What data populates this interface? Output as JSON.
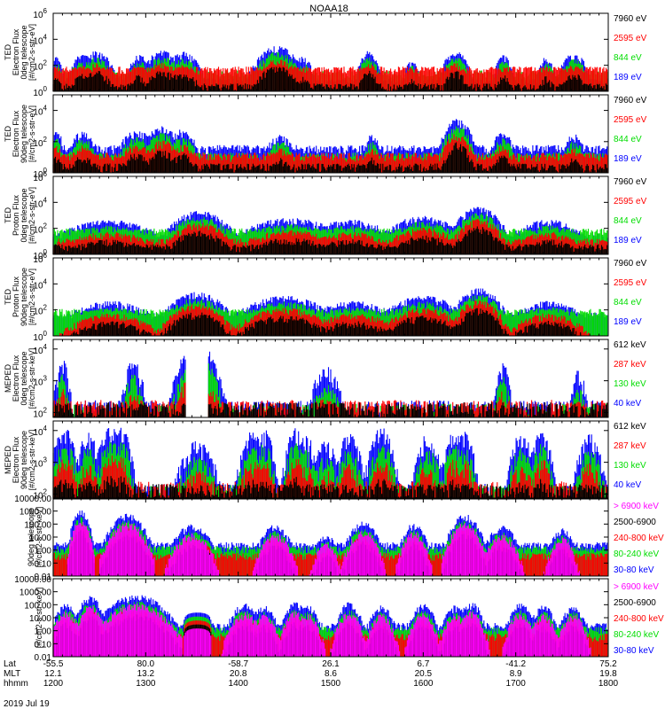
{
  "title": "NOAA18",
  "date_label": "2019 Jul 19",
  "colors": {
    "black": "#000000",
    "red": "#ff0000",
    "green": "#00dd00",
    "blue": "#0000ff",
    "magenta": "#ff00ff"
  },
  "time_axis": {
    "range": [
      1200,
      1800
    ],
    "row_labels": [
      "Lat",
      "MLT",
      "hhmm"
    ],
    "ticks": [
      {
        "time": 1200,
        "lat": "-55.5",
        "mlt": "12.1",
        "hhmm": "1200"
      },
      {
        "time": 1300,
        "lat": "80.0",
        "mlt": "13.2",
        "hhmm": "1300"
      },
      {
        "time": 1400,
        "lat": "-58.7",
        "mlt": "20.8",
        "hhmm": "1400"
      },
      {
        "time": 1500,
        "lat": "26.1",
        "mlt": "8.6",
        "hhmm": "1500"
      },
      {
        "time": 1600,
        "lat": "6.7",
        "mlt": "20.5",
        "hhmm": "1600"
      },
      {
        "time": 1700,
        "lat": "-41.2",
        "mlt": "8.9",
        "hhmm": "1700"
      },
      {
        "time": 1800,
        "lat": "75.2",
        "mlt": "19.8",
        "hhmm": "1800"
      }
    ]
  },
  "chart_data": [
    {
      "type": "scatter",
      "yscale": "log",
      "ylim": [
        1,
        1000000
      ],
      "ylabel": [
        "TED",
        "Electron Flux",
        "0deg telescope",
        "[#/cm2-s-str-eV]"
      ],
      "yticks": [
        {
          "base": "10",
          "exp": "0",
          "value": 1
        },
        {
          "base": "10",
          "exp": "2",
          "value": 100
        },
        {
          "base": "10",
          "exp": "4",
          "value": 10000
        },
        {
          "base": "10",
          "exp": "6",
          "value": 1000000
        }
      ],
      "legend": [
        "7960 eV",
        "2595 eV",
        "844 eV",
        "189 eV"
      ],
      "legend_colors": [
        "#000000",
        "#ff0000",
        "#00dd00",
        "#0000ff"
      ],
      "bursts": [
        [
          1204,
          4,
          300
        ],
        [
          1231,
          8,
          500
        ],
        [
          1247,
          11,
          800
        ],
        [
          1293,
          8,
          400
        ],
        [
          1318,
          12,
          900
        ],
        [
          1340,
          12,
          700
        ],
        [
          1442,
          14,
          2000
        ],
        [
          1470,
          7,
          300
        ],
        [
          1541,
          7,
          800
        ],
        [
          1588,
          5,
          200
        ],
        [
          1635,
          9,
          800
        ],
        [
          1687,
          6,
          400
        ],
        [
          1733,
          6,
          300
        ],
        [
          1763,
          9,
          600
        ]
      ],
      "baseline": [
        2,
        40,
        20,
        5
      ],
      "mask": []
    },
    {
      "type": "scatter",
      "yscale": "log",
      "ylim": [
        1,
        100000
      ],
      "ylabel": [
        "TED",
        "Electron Flux",
        "90deg telescope",
        "[#/cm2-s-str-eV]"
      ],
      "yticks": [
        {
          "base": "10",
          "exp": "0",
          "value": 1
        },
        {
          "base": "10",
          "exp": "2",
          "value": 100
        },
        {
          "base": "10",
          "exp": "4",
          "value": 10000
        }
      ],
      "legend": [
        "7960 eV",
        "2595 eV",
        "844 eV",
        "189 eV"
      ],
      "legend_colors": [
        "#000000",
        "#ff0000",
        "#00dd00",
        "#0000ff"
      ],
      "bursts": [
        [
          1204,
          5,
          300
        ],
        [
          1232,
          10,
          300
        ],
        [
          1290,
          12,
          400
        ],
        [
          1318,
          12,
          700
        ],
        [
          1340,
          10,
          400
        ],
        [
          1445,
          10,
          200
        ],
        [
          1545,
          6,
          200
        ],
        [
          1637,
          10,
          2000
        ],
        [
          1686,
          8,
          300
        ],
        [
          1763,
          8,
          200
        ]
      ],
      "baseline": [
        2,
        10,
        10,
        30
      ],
      "mask": []
    },
    {
      "type": "scatter",
      "yscale": "log",
      "ylim": [
        1,
        1000000
      ],
      "ylabel": [
        "TED",
        "Proton Flux",
        "0deg telescope",
        "[#/cm2-s-str-eV]"
      ],
      "yticks": [
        {
          "base": "10",
          "exp": "0",
          "value": 1
        },
        {
          "base": "10",
          "exp": "2",
          "value": 100
        },
        {
          "base": "10",
          "exp": "4",
          "value": 10000
        },
        {
          "base": "10",
          "exp": "6",
          "value": 1000000
        }
      ],
      "legend": [
        "7960 eV",
        "2595 eV",
        "844 eV",
        "189 eV"
      ],
      "legend_colors": [
        "#000000",
        "#ff0000",
        "#00dd00",
        "#0000ff"
      ],
      "bursts": [
        [
          1260,
          35,
          300
        ],
        [
          1358,
          20,
          1500
        ],
        [
          1456,
          35,
          400
        ],
        [
          1520,
          30,
          300
        ],
        [
          1600,
          25,
          600
        ],
        [
          1660,
          15,
          3000
        ],
        [
          1735,
          25,
          300
        ]
      ],
      "baseline": [
        3,
        8,
        50,
        20
      ],
      "mask": []
    },
    {
      "type": "scatter",
      "yscale": "log",
      "ylim": [
        1,
        1000000
      ],
      "ylabel": [
        "TED",
        "Proton Flux",
        "90deg telescope",
        "[#/cm2-s-str-eV]"
      ],
      "yticks": [
        {
          "base": "10",
          "exp": "0",
          "value": 1
        },
        {
          "base": "10",
          "exp": "2",
          "value": 100
        },
        {
          "base": "10",
          "exp": "4",
          "value": 10000
        },
        {
          "base": "10",
          "exp": "6",
          "value": 1000000
        }
      ],
      "legend": [
        "7960 eV",
        "2595 eV",
        "844 eV",
        "189 eV"
      ],
      "legend_colors": [
        "#000000",
        "#ff0000",
        "#00dd00",
        "#0000ff"
      ],
      "bursts": [
        [
          1262,
          30,
          300
        ],
        [
          1355,
          20,
          1500
        ],
        [
          1450,
          30,
          800
        ],
        [
          1525,
          30,
          300
        ],
        [
          1600,
          25,
          800
        ],
        [
          1660,
          15,
          3000
        ],
        [
          1735,
          25,
          300
        ]
      ],
      "baseline": [
        0,
        0,
        60,
        30
      ],
      "mask": []
    },
    {
      "type": "scatter",
      "yscale": "log",
      "ylim": [
        70,
        20000
      ],
      "ylabel": [
        "MEPED",
        "Electron Flux",
        "0deg telescope",
        "[#/cm2-s-str-keV]"
      ],
      "yticks": [
        {
          "base": "10",
          "exp": "2",
          "value": 100
        },
        {
          "base": "10",
          "exp": "3",
          "value": 1000
        },
        {
          "base": "10",
          "exp": "4",
          "value": 10000
        }
      ],
      "legend": [
        "612 keV",
        "287 keV",
        "130 keV",
        "40 keV"
      ],
      "legend_colors": [
        "#000000",
        "#ff0000",
        "#00dd00",
        "#0000ff"
      ],
      "bursts": [
        [
          1210,
          6,
          3000
        ],
        [
          1287,
          8,
          3000
        ],
        [
          1356,
          15,
          13000
        ],
        [
          1495,
          12,
          1800
        ],
        [
          1686,
          6,
          2500
        ],
        [
          1768,
          6,
          1500
        ]
      ],
      "baseline": [
        105,
        125,
        95,
        120
      ],
      "mask": [
        [
          1344,
          1368
        ]
      ]
    },
    {
      "type": "scatter",
      "yscale": "log",
      "ylim": [
        70,
        20000
      ],
      "ylabel": [
        "MEPED",
        "Electron Flux",
        "90deg telescope",
        "[#/cm2-s-str-keV]"
      ],
      "yticks": [
        {
          "base": "10",
          "exp": "2",
          "value": 100
        },
        {
          "base": "10",
          "exp": "3",
          "value": 1000
        },
        {
          "base": "10",
          "exp": "4",
          "value": 10000
        }
      ],
      "legend": [
        "612 keV",
        "287 keV",
        "130 keV",
        "40 keV"
      ],
      "legend_colors": [
        "#000000",
        "#ff0000",
        "#00dd00",
        "#0000ff"
      ],
      "bursts": [
        [
          1213,
          10,
          8000
        ],
        [
          1238,
          8,
          6000
        ],
        [
          1262,
          10,
          9000
        ],
        [
          1274,
          8,
          8000
        ],
        [
          1356,
          15,
          3000
        ],
        [
          1415,
          10,
          6000
        ],
        [
          1428,
          8,
          7000
        ],
        [
          1462,
          8,
          8000
        ],
        [
          1473,
          8,
          5000
        ],
        [
          1495,
          10,
          3000
        ],
        [
          1520,
          10,
          5000
        ],
        [
          1555,
          10,
          8000
        ],
        [
          1605,
          10,
          5000
        ],
        [
          1633,
          8,
          7000
        ],
        [
          1645,
          8,
          6000
        ],
        [
          1706,
          10,
          5000
        ],
        [
          1728,
          8,
          7000
        ],
        [
          1780,
          10,
          5000
        ]
      ],
      "baseline": [
        105,
        125,
        95,
        105
      ],
      "mask": []
    },
    {
      "type": "scatter",
      "yscale": "log",
      "ylim": [
        0.01,
        10000
      ],
      "ylabel": [
        "90deg telescope",
        "[#/cm2-s-str-keV]"
      ],
      "yticks": [
        {
          "label": "0.01",
          "value": 0.01
        },
        {
          "label": "0.10",
          "value": 0.1
        },
        {
          "label": "1.00",
          "value": 1
        },
        {
          "label": "10.00",
          "value": 10
        },
        {
          "label": "100.00",
          "value": 100
        },
        {
          "label": "1000.00",
          "value": 1000
        },
        {
          "label": "10000.00",
          "value": 10000
        }
      ],
      "legend": [
        "> 6900 keV",
        "2500-6900",
        "240-800 keV",
        "80-240 keV",
        "30-80 keV"
      ],
      "legend_colors": [
        "#ff00ff",
        "#000000",
        "#ff0000",
        "#00dd00",
        "#0000ff"
      ],
      "bursts": [
        [
          1230,
          6,
          800
        ],
        [
          1280,
          12,
          400
        ],
        [
          1350,
          12,
          60
        ],
        [
          1440,
          10,
          60
        ],
        [
          1495,
          8,
          10
        ],
        [
          1535,
          10,
          100
        ],
        [
          1590,
          8,
          80
        ],
        [
          1645,
          10,
          400
        ],
        [
          1685,
          10,
          50
        ],
        [
          1750,
          8,
          30
        ]
      ],
      "baseline": [
        0,
        0,
        0.3,
        1,
        2
      ],
      "mask": [],
      "dome": [
        1356,
        15,
        18,
        0.05
      ]
    },
    {
      "type": "scatter",
      "yscale": "log",
      "ylim": [
        0.01,
        10000
      ],
      "ylabel": [
        "[#/cm2-s-str-keV]"
      ],
      "yticks": [
        {
          "label": "0.01",
          "value": 0.01
        },
        {
          "label": "0.10",
          "value": 0.1
        },
        {
          "label": "1.00",
          "value": 1
        },
        {
          "label": "10.00",
          "value": 10
        },
        {
          "label": "100.00",
          "value": 100
        },
        {
          "label": "1000.00",
          "value": 1000
        },
        {
          "label": "10000.00",
          "value": 10000
        }
      ],
      "legend": [
        "> 6900 keV",
        "2500-6900",
        "240-800 keV",
        "80-240 keV",
        "30-80 keV"
      ],
      "legend_colors": [
        "#ff00ff",
        "#000000",
        "#ff0000",
        "#00dd00",
        "#0000ff"
      ],
      "bursts": [
        [
          1214,
          8,
          100
        ],
        [
          1240,
          8,
          300
        ],
        [
          1290,
          20,
          400
        ],
        [
          1407,
          10,
          80
        ],
        [
          1428,
          8,
          60
        ],
        [
          1462,
          8,
          100
        ],
        [
          1475,
          8,
          60
        ],
        [
          1520,
          8,
          100
        ],
        [
          1555,
          8,
          60
        ],
        [
          1600,
          8,
          80
        ],
        [
          1635,
          8,
          60
        ],
        [
          1652,
          8,
          100
        ],
        [
          1705,
          8,
          80
        ],
        [
          1730,
          8,
          60
        ],
        [
          1762,
          8,
          60
        ]
      ],
      "baseline": [
        0,
        0,
        0.3,
        1,
        2
      ],
      "mask": [],
      "dome": [
        1356,
        15,
        25,
        0.15
      ]
    }
  ]
}
